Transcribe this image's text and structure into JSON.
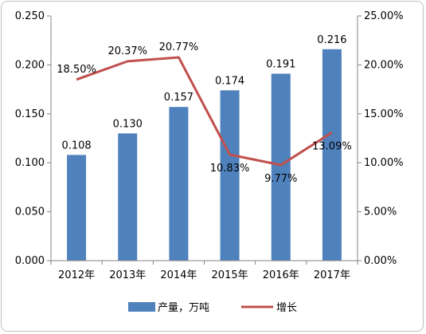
{
  "chart_data": {
    "type": "bar+line",
    "categories": [
      "2012年",
      "2013年",
      "2014年",
      "2015年",
      "2016年",
      "2017年"
    ],
    "series": [
      {
        "name": "产量，万吨",
        "type": "bar",
        "axis": "left",
        "values": [
          0.108,
          0.13,
          0.157,
          0.174,
          0.191,
          0.216
        ],
        "labels": [
          "0.108",
          "0.130",
          "0.157",
          "0.174",
          "0.191",
          "0.216"
        ],
        "color": "#4f81bd"
      },
      {
        "name": "增长",
        "type": "line",
        "axis": "right",
        "values": [
          18.5,
          20.37,
          20.77,
          10.83,
          9.77,
          13.09
        ],
        "labels": [
          "18.50%",
          "20.37%",
          "20.77%",
          "10.83%",
          "9.77%",
          "13.09%"
        ],
        "color": "#c0504d"
      }
    ],
    "y_left": {
      "ylim": [
        0,
        0.25
      ],
      "ticks": [
        "0.000",
        "0.050",
        "0.100",
        "0.150",
        "0.200",
        "0.250"
      ]
    },
    "y_right": {
      "ylim": [
        0,
        25
      ],
      "ticks": [
        "0.00%",
        "5.00%",
        "10.00%",
        "15.00%",
        "20.00%",
        "25.00%"
      ]
    },
    "grid": false,
    "legend_position": "bottom"
  }
}
